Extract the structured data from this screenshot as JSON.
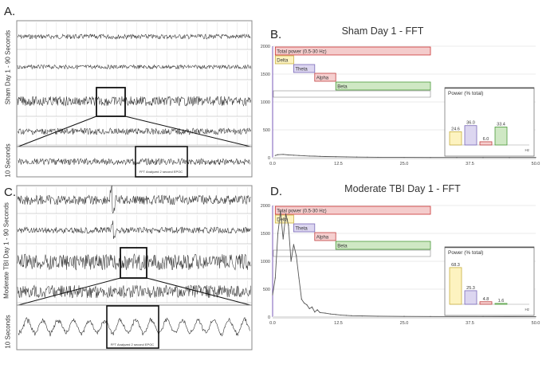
{
  "panels": {
    "a": {
      "letter": "A.",
      "label": "Sham Day 1 - 90 Seconds",
      "zoom_label": "10 Seconds",
      "epoc_label": "FFT Analyzed 2 second EPOC"
    },
    "b": {
      "letter": "B."
    },
    "c": {
      "letter": "C.",
      "label": "Moderate TBI Day 1 - 90 Seconds",
      "zoom_label": "10 Seconds",
      "epoc_label": "FFT Analyzed 2 second EPOC"
    },
    "d": {
      "letter": "D."
    }
  },
  "colors": {
    "total": "#f4cccc",
    "total_border": "#cc3333",
    "delta": "#fdf3c0",
    "delta_border": "#c8b040",
    "theta": "#dcd6f0",
    "theta_border": "#7a6ab8",
    "alpha": "#f6cfcf",
    "alpha_border": "#c04040",
    "beta": "#cfe8c4",
    "beta_border": "#4a9a3a"
  },
  "chart_data": [
    {
      "type": "line",
      "title": "Sham Day 1 - FFT",
      "xlabel": "",
      "ylabel": "",
      "xlim": [
        0,
        50
      ],
      "ylim": [
        0,
        2000
      ],
      "x_ticks": [
        "0.0",
        "12.5",
        "25.0",
        "37.5",
        "50.0"
      ],
      "y_ticks": [
        "0",
        "500",
        "1000",
        "1500",
        "2000"
      ],
      "bands": [
        {
          "name": "Total power (0.5-30 Hz)",
          "from": 0.5,
          "to": 30
        },
        {
          "name": "Delta",
          "from": 0.5,
          "to": 4
        },
        {
          "name": "Theta",
          "from": 4,
          "to": 8
        },
        {
          "name": "Alpha",
          "from": 8,
          "to": 12
        },
        {
          "name": "Beta",
          "from": 12,
          "to": 30
        }
      ],
      "series": [
        {
          "name": "FFT power",
          "x": [
            0.5,
            1,
            2,
            3,
            4,
            5,
            6,
            7,
            8,
            9,
            10,
            12,
            14,
            16,
            18,
            20,
            25,
            30,
            35,
            40,
            45,
            50
          ],
          "y": [
            40,
            55,
            60,
            50,
            45,
            40,
            35,
            30,
            28,
            25,
            22,
            18,
            15,
            12,
            10,
            8,
            6,
            5,
            5,
            4,
            4,
            4
          ]
        }
      ],
      "inset": {
        "title": "Power (% total)",
        "unit": "Hz",
        "categories": [
          "Delta",
          "Theta",
          "Alpha",
          "Beta"
        ],
        "values": [
          24.6,
          36.0,
          6.0,
          33.4
        ],
        "labels": [
          "24.6",
          "36.0",
          "6.0",
          "33.4"
        ]
      }
    },
    {
      "type": "line",
      "title": "Moderate TBI Day 1 - FFT",
      "xlabel": "",
      "ylabel": "",
      "xlim": [
        0,
        50
      ],
      "ylim": [
        0,
        2000
      ],
      "x_ticks": [
        "0.0",
        "12.5",
        "25.0",
        "37.5",
        "50.0"
      ],
      "y_ticks": [
        "0",
        "500",
        "1000",
        "1500",
        "2000"
      ],
      "bands": [
        {
          "name": "Total power (0.5-30 Hz)",
          "from": 0.5,
          "to": 30
        },
        {
          "name": "Delta",
          "from": 0.5,
          "to": 4
        },
        {
          "name": "Theta",
          "from": 4,
          "to": 8
        },
        {
          "name": "Alpha",
          "from": 8,
          "to": 12
        },
        {
          "name": "Beta",
          "from": 12,
          "to": 30
        }
      ],
      "series": [
        {
          "name": "FFT power",
          "x": [
            0,
            0.5,
            1,
            1.5,
            2,
            2.5,
            3,
            3.5,
            4,
            4.5,
            5,
            5.5,
            6,
            6.5,
            7,
            7.5,
            8,
            8.5,
            9,
            10,
            11,
            12,
            13,
            14,
            15,
            17,
            20,
            25,
            30,
            40,
            50
          ],
          "y": [
            400,
            700,
            1500,
            1900,
            1400,
            1850,
            1650,
            1000,
            1300,
            1100,
            700,
            320,
            250,
            220,
            150,
            180,
            90,
            130,
            80,
            70,
            55,
            45,
            35,
            30,
            25,
            20,
            15,
            12,
            10,
            8,
            6
          ]
        }
      ],
      "inset": {
        "title": "Power (% total)",
        "unit": "Hz",
        "categories": [
          "Delta",
          "Theta",
          "Alpha",
          "Beta"
        ],
        "values": [
          68.3,
          25.3,
          4.8,
          1.6
        ],
        "labels": [
          "68.3",
          "25.3",
          "4.8",
          "1.6"
        ]
      }
    }
  ]
}
